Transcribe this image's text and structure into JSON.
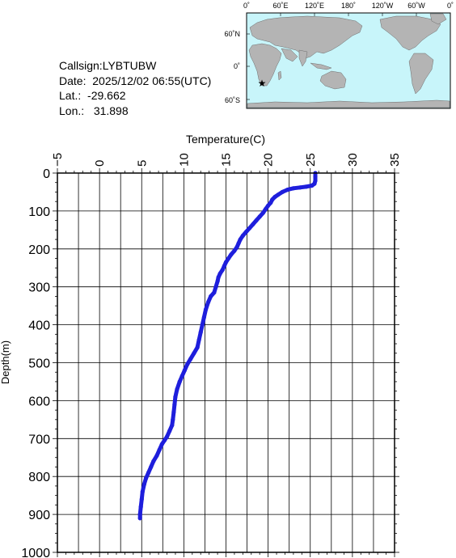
{
  "info": {
    "callsign_label": "Callsign:",
    "callsign": "LYBTUBW",
    "date_label": "Date:",
    "date": "2025/12/02 06:55(UTC)",
    "lat_label": "Lat.:",
    "lat": "-29.662",
    "lon_label": "Lon.:",
    "lon": "31.898"
  },
  "map": {
    "top_ticks": [
      "0˚",
      "60˚E",
      "120˚E",
      "180˚",
      "120˚W",
      "60˚W",
      "0˚"
    ],
    "left_ticks": [
      "60˚N",
      "0˚",
      "60˚S"
    ],
    "ocean_color": "#c8f5fa",
    "land_color": "#b4b4b4",
    "marker_color": "#ff0000",
    "marker_icon": "star-icon"
  },
  "chart_data": {
    "type": "line",
    "xlabel": "Temperature(C)",
    "ylabel": "Depth(m)",
    "xlim": [
      -5,
      35
    ],
    "ylim": [
      0,
      1000
    ],
    "y_inverted": true,
    "x_ticks": [
      -5,
      0,
      5,
      10,
      15,
      20,
      25,
      30,
      35
    ],
    "y_ticks": [
      0,
      100,
      200,
      300,
      400,
      500,
      600,
      700,
      800,
      900,
      1000
    ],
    "grid": true,
    "line_color": "#1e1edc",
    "series": [
      {
        "points": [
          [
            25.6,
            0
          ],
          [
            25.6,
            10
          ],
          [
            25.6,
            20
          ],
          [
            25.5,
            28
          ],
          [
            25.2,
            33
          ],
          [
            24.5,
            36
          ],
          [
            23.8,
            38
          ],
          [
            23.0,
            40
          ],
          [
            22.3,
            44
          ],
          [
            21.7,
            50
          ],
          [
            21.2,
            57
          ],
          [
            20.8,
            63
          ],
          [
            20.5,
            70
          ],
          [
            20.3,
            78
          ],
          [
            20.0,
            86
          ],
          [
            19.7,
            95
          ],
          [
            19.4,
            105
          ],
          [
            19.0,
            115
          ],
          [
            18.6,
            125
          ],
          [
            18.2,
            135
          ],
          [
            17.8,
            145
          ],
          [
            17.4,
            155
          ],
          [
            17.0,
            165
          ],
          [
            16.7,
            175
          ],
          [
            16.5,
            185
          ],
          [
            16.3,
            195
          ],
          [
            16.0,
            205
          ],
          [
            15.6,
            215
          ],
          [
            15.3,
            225
          ],
          [
            15.0,
            235
          ],
          [
            14.8,
            245
          ],
          [
            14.6,
            255
          ],
          [
            14.3,
            265
          ],
          [
            14.1,
            275
          ],
          [
            14.0,
            285
          ],
          [
            13.8,
            300
          ],
          [
            13.6,
            315
          ],
          [
            13.2,
            325
          ],
          [
            12.9,
            340
          ],
          [
            12.6,
            360
          ],
          [
            12.4,
            380
          ],
          [
            12.2,
            400
          ],
          [
            12.0,
            420
          ],
          [
            11.8,
            440
          ],
          [
            11.6,
            460
          ],
          [
            11.2,
            475
          ],
          [
            10.8,
            490
          ],
          [
            10.4,
            505
          ],
          [
            10.1,
            520
          ],
          [
            9.8,
            535
          ],
          [
            9.5,
            550
          ],
          [
            9.2,
            570
          ],
          [
            9.0,
            590
          ],
          [
            8.9,
            610
          ],
          [
            8.8,
            630
          ],
          [
            8.7,
            650
          ],
          [
            8.6,
            665
          ],
          [
            8.3,
            680
          ],
          [
            8.0,
            695
          ],
          [
            7.7,
            705
          ],
          [
            7.4,
            715
          ],
          [
            7.1,
            730
          ],
          [
            6.8,
            745
          ],
          [
            6.4,
            760
          ],
          [
            6.1,
            775
          ],
          [
            5.8,
            790
          ],
          [
            5.5,
            805
          ],
          [
            5.3,
            820
          ],
          [
            5.1,
            840
          ],
          [
            5.0,
            860
          ],
          [
            4.9,
            880
          ],
          [
            4.8,
            900
          ],
          [
            4.8,
            910
          ]
        ]
      }
    ]
  }
}
